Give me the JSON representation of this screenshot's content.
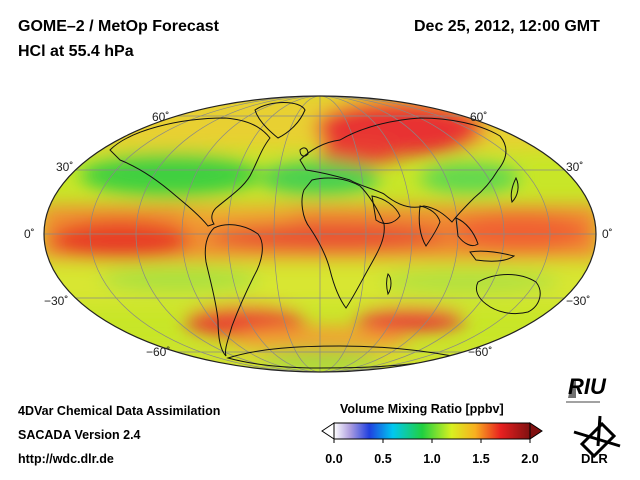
{
  "header": {
    "title": "GOME–2 / MetOp Forecast",
    "subtitle": "HCl at 55.4 hPa",
    "datetime": "Dec 25, 2012, 12:00 GMT"
  },
  "map": {
    "projection": "Hammer-Aitoff (global, centered on 0°)",
    "lat_labels": {
      "n60": "60˚",
      "n30": "30˚",
      "eq": "0˚",
      "s30": "−30˚",
      "s60": "−60˚"
    },
    "colors": {
      "low": "#3030d0",
      "mid": "#30d030",
      "high": "#e02020"
    }
  },
  "footer": {
    "line1": "4DVar Chemical Data Assimilation",
    "line2": "SACADA Version 2.4",
    "line3": "http://wdc.dlr.de"
  },
  "colorbar": {
    "title": "Volume Mixing Ratio [ppbv]",
    "ticks": [
      "0.0",
      "0.5",
      "1.0",
      "1.5",
      "2.0"
    ],
    "range": [
      0.0,
      2.0
    ]
  },
  "logos": {
    "riu": "RIU",
    "dlr": "DLR"
  }
}
